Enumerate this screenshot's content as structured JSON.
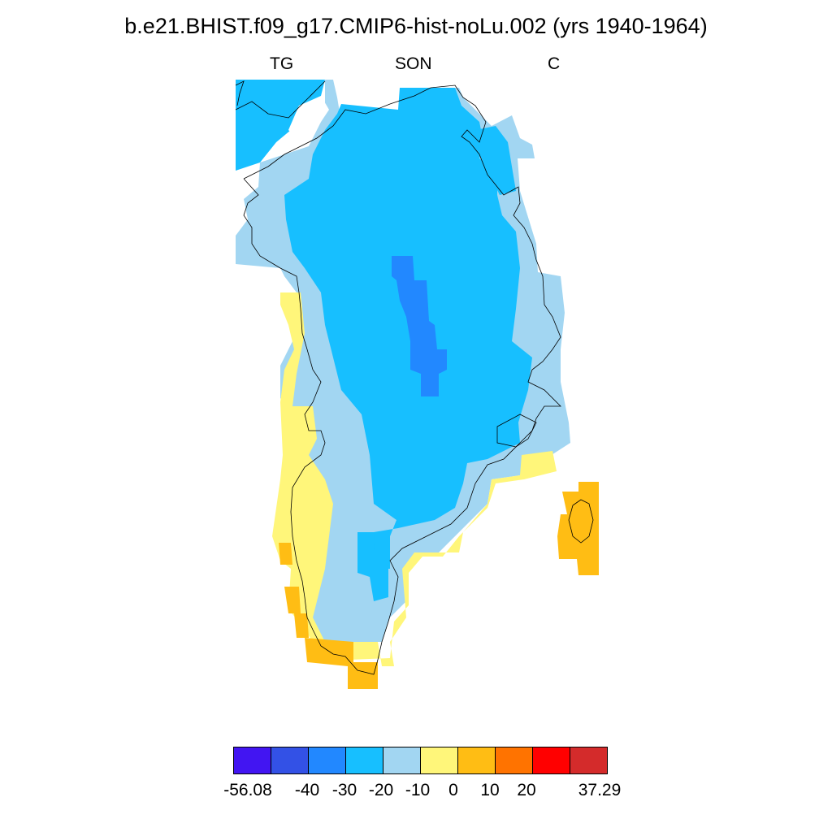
{
  "title": "b.e21.BHIST.f09_g17.CMIP6-hist-noLu.002 (yrs 1940-1964)",
  "subtitle_left": "TG",
  "subtitle_center": "SON",
  "subtitle_right": "C",
  "colorbar": {
    "colors": [
      "#4215f2",
      "#3351e6",
      "#2288ff",
      "#17bfff",
      "#a2d6f2",
      "#fff67a",
      "#ffbd14",
      "#ff7300",
      "#ff0000",
      "#d42b2b"
    ],
    "tick_labels": [
      "-56.08",
      "-40",
      "-30",
      "-20",
      "-10",
      "0",
      "10",
      "20",
      "37.29"
    ]
  }
}
